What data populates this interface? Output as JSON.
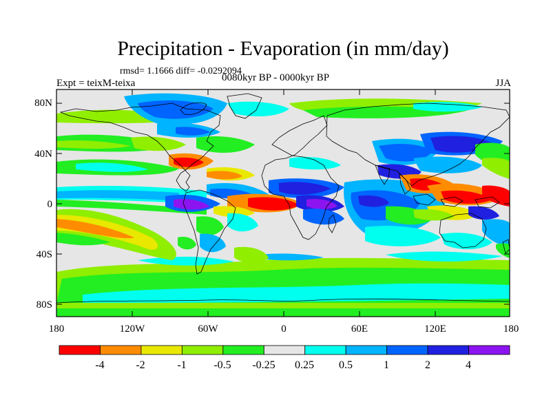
{
  "plot": {
    "title": "Precipitation - Evaporation (in mm/day)",
    "stats": "rmsd= 1.1666 diff= -0.0292094",
    "experiment": "Expt = teixM-teixa",
    "period": "0080kyr BP - 0000kyr BP",
    "season": "JJA"
  },
  "axes": {
    "lat_labels": [
      "80N",
      "40N",
      "0",
      "40S",
      "80S"
    ],
    "lat_values": [
      80,
      40,
      0,
      -40,
      -80
    ],
    "lon_labels": [
      "180",
      "120W",
      "60W",
      "0",
      "60E",
      "120E",
      "180"
    ],
    "lon_values": [
      -180,
      -120,
      -60,
      0,
      60,
      120,
      180
    ],
    "lon_range": [
      -180,
      180
    ],
    "lat_range": [
      -90,
      90
    ]
  },
  "colorbar": {
    "labels": [
      "-4",
      "-2",
      "-1",
      "-0.5",
      "-0.25",
      "0.25",
      "0.5",
      "1",
      "2",
      "4"
    ],
    "colors": [
      "#ff0000",
      "#ff8c00",
      "#e8e800",
      "#90ee00",
      "#22ee22",
      "#e6e6e6",
      "#00ffee",
      "#00b4ff",
      "#0064ff",
      "#2020e0",
      "#8c14f0"
    ]
  }
}
